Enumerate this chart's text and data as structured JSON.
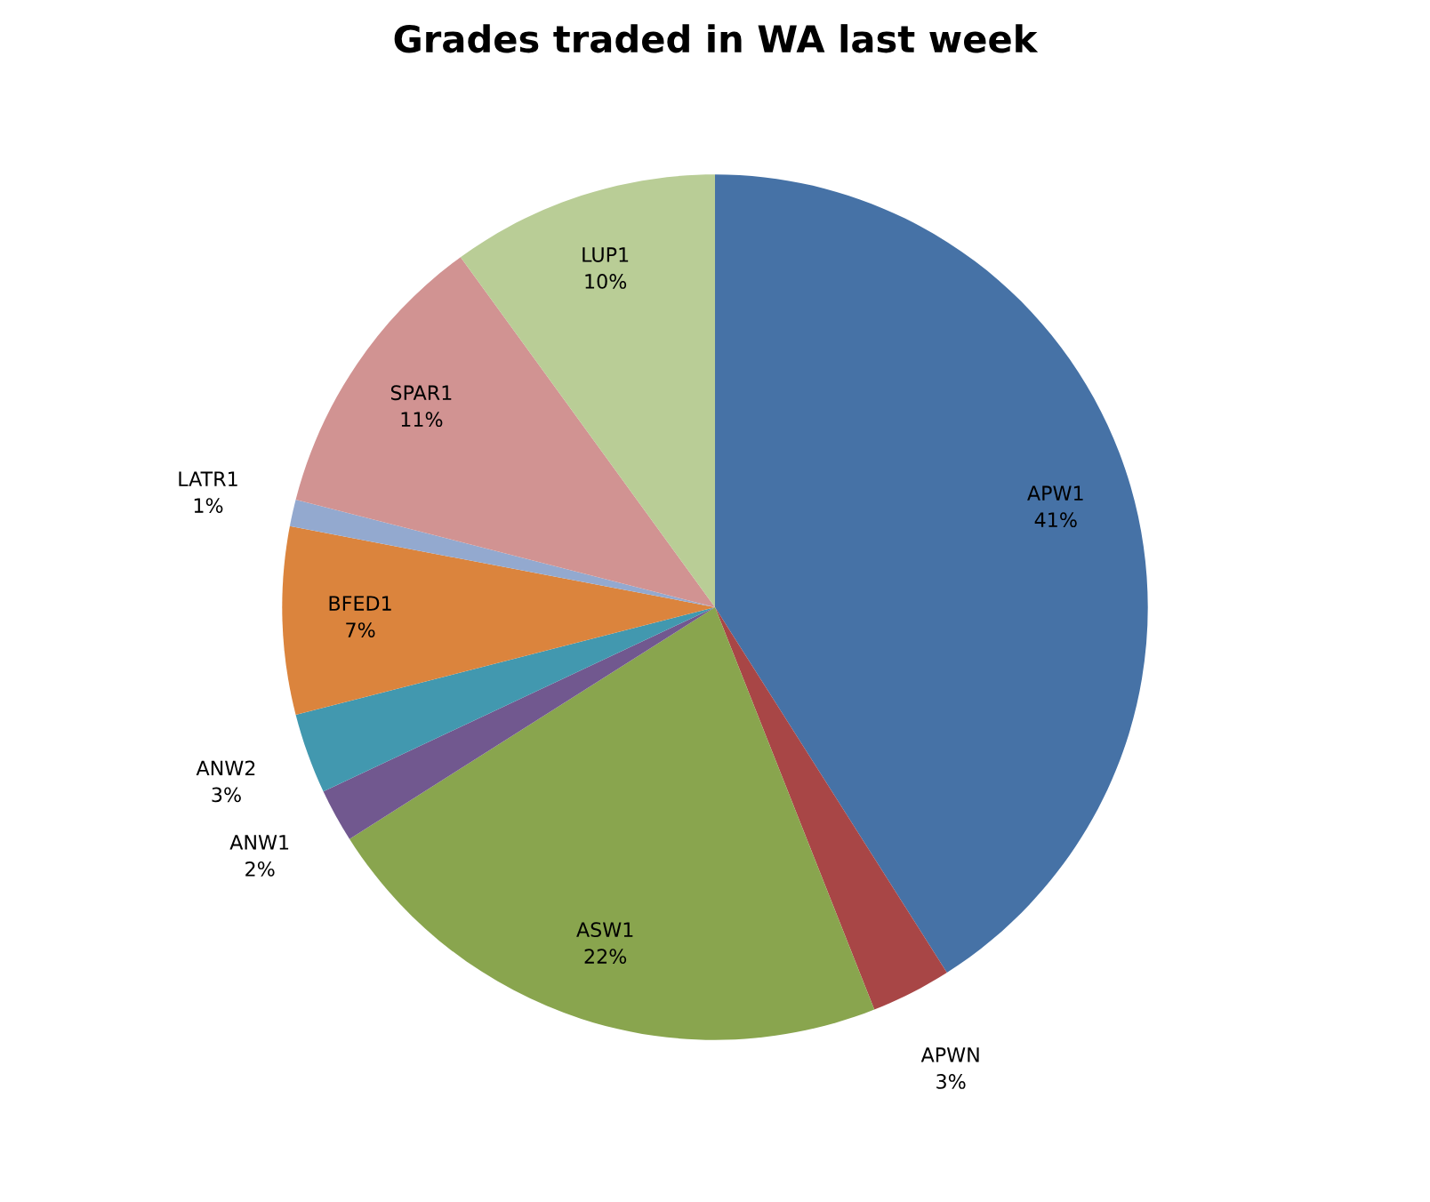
{
  "chart_data": {
    "type": "pie",
    "title": "Grades traded in WA last week",
    "categories": [
      "APW1",
      "APWN",
      "ASW1",
      "ANW1",
      "ANW2",
      "BFED1",
      "LATR1",
      "SPAR1",
      "LUP1"
    ],
    "values": [
      41,
      3,
      22,
      2,
      3,
      7,
      1,
      11,
      10
    ],
    "value_labels": [
      "41%",
      "3%",
      "22%",
      "2%",
      "3%",
      "7%",
      "1%",
      "11%",
      "10%"
    ],
    "colors": [
      "#4672a6",
      "#a84646",
      "#89a54e",
      "#71588f",
      "#4298af",
      "#db843d",
      "#93a9cf",
      "#d19392",
      "#b9cd96"
    ]
  }
}
